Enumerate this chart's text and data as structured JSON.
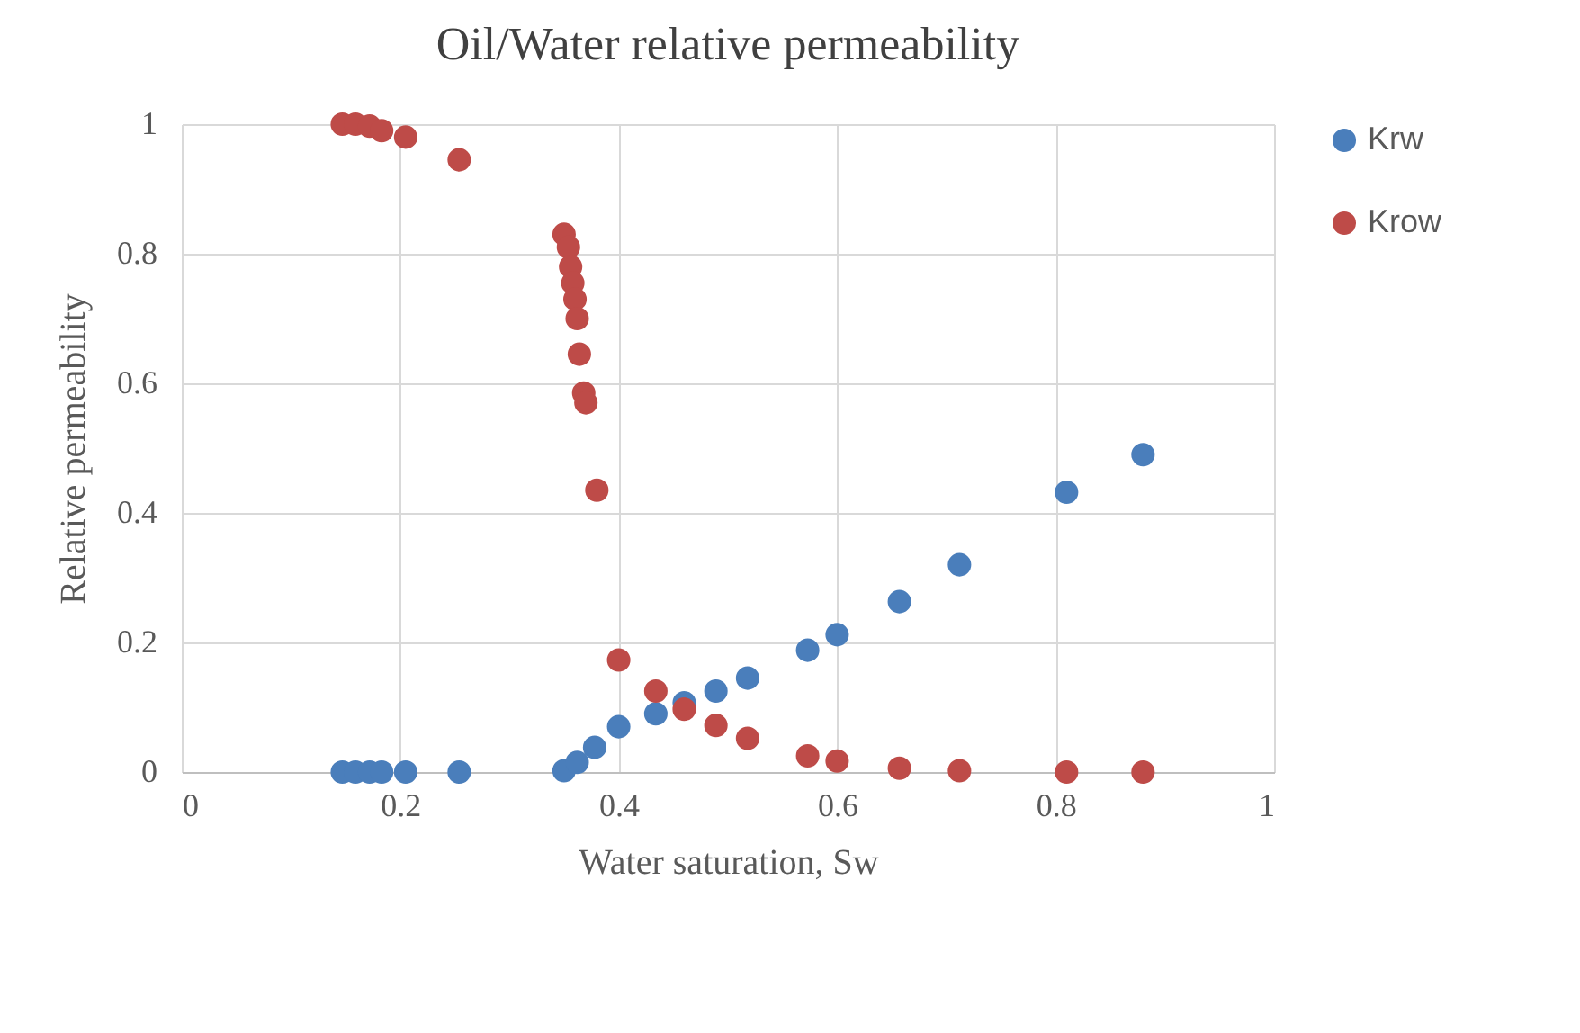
{
  "chart_data": {
    "type": "scatter",
    "title": "Oil/Water relative permeability",
    "xlabel": "Water saturation, Sw",
    "ylabel": "Relative permeability",
    "xlim": [
      0,
      1
    ],
    "xticks": [
      0,
      0.2,
      0.4,
      0.6,
      0.8,
      1
    ],
    "ylim": [
      0,
      1
    ],
    "yticks": [
      0,
      0.2,
      0.4,
      0.6,
      0.8,
      1
    ],
    "grid": true,
    "legend": "right",
    "marker": "circle",
    "series": [
      {
        "name": "Krw",
        "color": "#4a7ebb",
        "x": [
          0.147,
          0.159,
          0.172,
          0.183,
          0.205,
          0.254,
          0.35,
          0.362,
          0.378,
          0.4,
          0.434,
          0.46,
          0.489,
          0.518,
          0.573,
          0.6,
          0.657,
          0.712,
          0.81,
          0.88
        ],
        "values": [
          0,
          0,
          0,
          0,
          0,
          0,
          0.002,
          0.015,
          0.038,
          0.07,
          0.09,
          0.107,
          0.125,
          0.145,
          0.188,
          0.212,
          0.263,
          0.32,
          0.432,
          0.49
        ]
      },
      {
        "name": "Krow",
        "color": "#be4b48",
        "x": [
          0.147,
          0.159,
          0.172,
          0.183,
          0.205,
          0.254,
          0.35,
          0.354,
          0.356,
          0.358,
          0.36,
          0.362,
          0.364,
          0.368,
          0.37,
          0.38,
          0.4,
          0.434,
          0.46,
          0.489,
          0.518,
          0.573,
          0.6,
          0.657,
          0.712,
          0.81,
          0.88
        ],
        "values": [
          1.0,
          1.0,
          0.997,
          0.99,
          0.98,
          0.945,
          0.83,
          0.81,
          0.78,
          0.755,
          0.73,
          0.7,
          0.645,
          0.585,
          0.57,
          0.435,
          0.173,
          0.125,
          0.097,
          0.072,
          0.052,
          0.025,
          0.017,
          0.006,
          0.002,
          0,
          0
        ]
      }
    ]
  }
}
